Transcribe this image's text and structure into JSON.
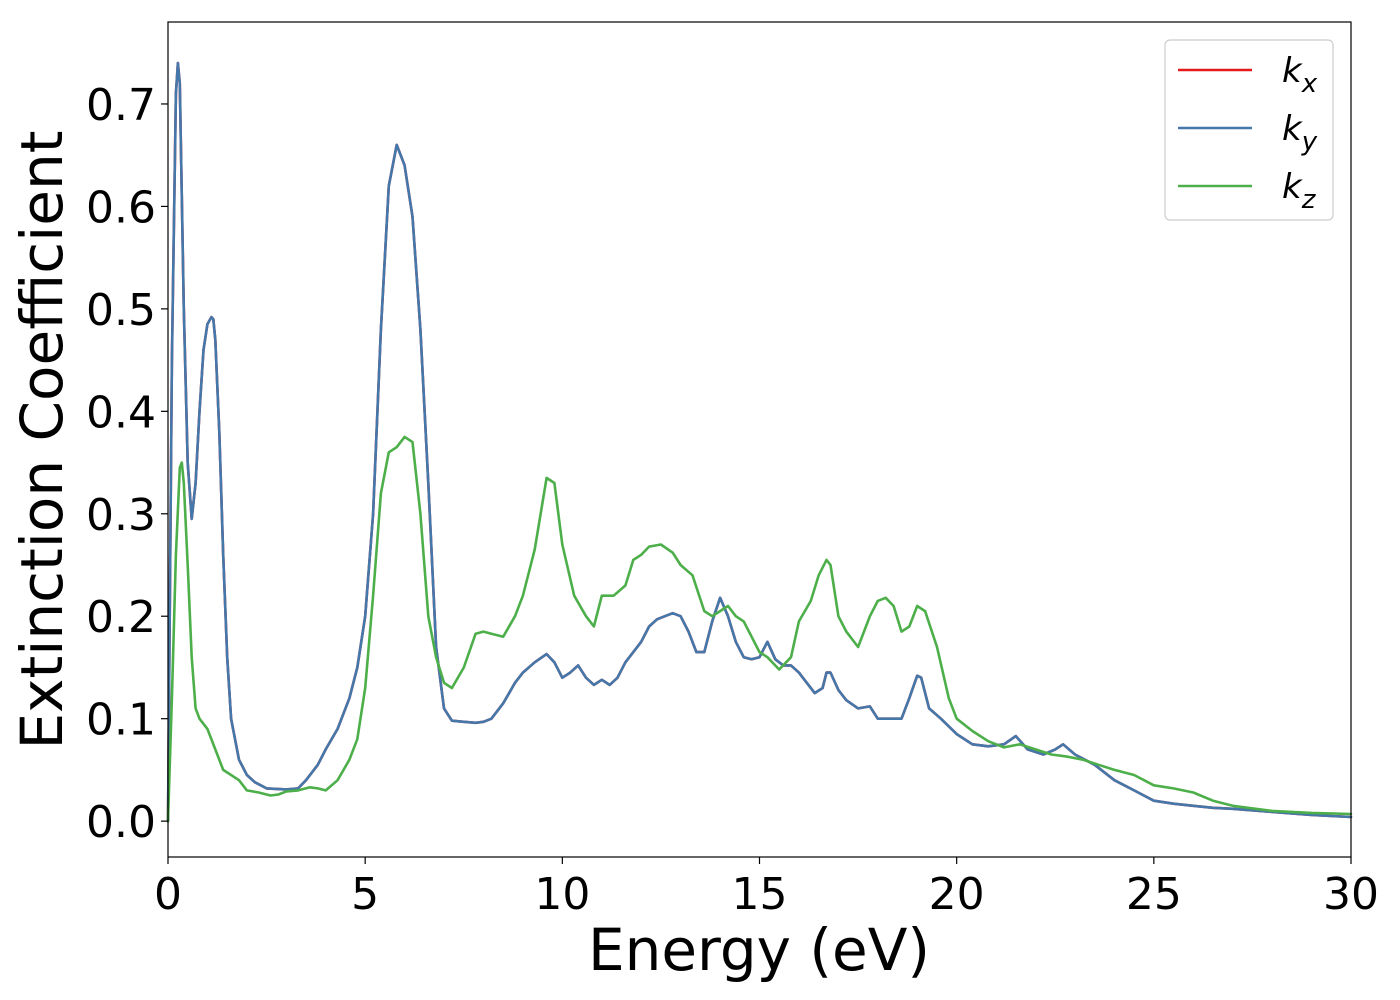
{
  "chart_data": {
    "type": "line",
    "title": "",
    "xlabel": "Energy (eV)",
    "ylabel": "Extinction Coefficient",
    "xlim": [
      0,
      30
    ],
    "ylim": [
      -0.035,
      0.78
    ],
    "xticks": [
      0,
      5,
      10,
      15,
      20,
      25,
      30
    ],
    "yticks": [
      0.0,
      0.1,
      0.2,
      0.3,
      0.4,
      0.5,
      0.6,
      0.7
    ],
    "grid": false,
    "legend_position": "top-right",
    "series": [
      {
        "name": "x",
        "color": "#e41a1c",
        "x": [
          0,
          0.1,
          0.2,
          0.25,
          0.3,
          0.4,
          0.5,
          0.6,
          0.7,
          0.8,
          0.9,
          1.0,
          1.1,
          1.15,
          1.2,
          1.3,
          1.4,
          1.5,
          1.6,
          1.8,
          2.0,
          2.2,
          2.5,
          3.0,
          3.3,
          3.5,
          3.8,
          4.0,
          4.3,
          4.6,
          4.8,
          5.0,
          5.2,
          5.4,
          5.6,
          5.8,
          6.0,
          6.2,
          6.4,
          6.6,
          6.8,
          7.0,
          7.2,
          7.5,
          7.8,
          8.0,
          8.2,
          8.5,
          8.8,
          9.0,
          9.3,
          9.6,
          9.8,
          10.0,
          10.2,
          10.4,
          10.6,
          10.8,
          11.0,
          11.2,
          11.4,
          11.6,
          11.8,
          12.0,
          12.2,
          12.4,
          12.6,
          12.8,
          13.0,
          13.2,
          13.4,
          13.6,
          13.8,
          14.0,
          14.2,
          14.4,
          14.6,
          14.8,
          15.0,
          15.2,
          15.4,
          15.6,
          15.8,
          16.0,
          16.2,
          16.4,
          16.6,
          16.7,
          16.8,
          17.0,
          17.2,
          17.5,
          17.8,
          18.0,
          18.2,
          18.4,
          18.6,
          18.8,
          19.0,
          19.1,
          19.3,
          19.6,
          20.0,
          20.4,
          20.8,
          21.2,
          21.5,
          21.8,
          22.2,
          22.5,
          22.7,
          23.0,
          23.5,
          24.0,
          24.5,
          25.0,
          25.5,
          26.0,
          26.5,
          27.0,
          28.0,
          29.0,
          30.0
        ],
        "y": [
          0.0,
          0.45,
          0.71,
          0.74,
          0.72,
          0.5,
          0.35,
          0.295,
          0.33,
          0.4,
          0.46,
          0.485,
          0.492,
          0.49,
          0.47,
          0.38,
          0.26,
          0.16,
          0.1,
          0.06,
          0.045,
          0.038,
          0.032,
          0.031,
          0.032,
          0.04,
          0.055,
          0.07,
          0.09,
          0.12,
          0.15,
          0.2,
          0.3,
          0.48,
          0.62,
          0.66,
          0.64,
          0.59,
          0.48,
          0.33,
          0.17,
          0.11,
          0.098,
          0.097,
          0.096,
          0.097,
          0.1,
          0.115,
          0.135,
          0.145,
          0.155,
          0.163,
          0.155,
          0.14,
          0.145,
          0.152,
          0.14,
          0.133,
          0.138,
          0.133,
          0.14,
          0.155,
          0.165,
          0.175,
          0.19,
          0.197,
          0.2,
          0.203,
          0.2,
          0.185,
          0.165,
          0.165,
          0.195,
          0.218,
          0.2,
          0.175,
          0.16,
          0.158,
          0.16,
          0.175,
          0.158,
          0.152,
          0.152,
          0.145,
          0.135,
          0.125,
          0.13,
          0.145,
          0.145,
          0.128,
          0.118,
          0.11,
          0.112,
          0.1,
          0.1,
          0.1,
          0.1,
          0.12,
          0.142,
          0.14,
          0.11,
          0.1,
          0.085,
          0.075,
          0.073,
          0.075,
          0.083,
          0.07,
          0.065,
          0.07,
          0.075,
          0.065,
          0.055,
          0.04,
          0.03,
          0.02,
          0.017,
          0.015,
          0.013,
          0.012,
          0.009,
          0.006,
          0.004
        ]
      },
      {
        "name": "y",
        "color": "#4477aa",
        "x": [
          0,
          0.1,
          0.2,
          0.25,
          0.3,
          0.4,
          0.5,
          0.6,
          0.7,
          0.8,
          0.9,
          1.0,
          1.1,
          1.15,
          1.2,
          1.3,
          1.4,
          1.5,
          1.6,
          1.8,
          2.0,
          2.2,
          2.5,
          3.0,
          3.3,
          3.5,
          3.8,
          4.0,
          4.3,
          4.6,
          4.8,
          5.0,
          5.2,
          5.4,
          5.6,
          5.8,
          6.0,
          6.2,
          6.4,
          6.6,
          6.8,
          7.0,
          7.2,
          7.5,
          7.8,
          8.0,
          8.2,
          8.5,
          8.8,
          9.0,
          9.3,
          9.6,
          9.8,
          10.0,
          10.2,
          10.4,
          10.6,
          10.8,
          11.0,
          11.2,
          11.4,
          11.6,
          11.8,
          12.0,
          12.2,
          12.4,
          12.6,
          12.8,
          13.0,
          13.2,
          13.4,
          13.6,
          13.8,
          14.0,
          14.2,
          14.4,
          14.6,
          14.8,
          15.0,
          15.2,
          15.4,
          15.6,
          15.8,
          16.0,
          16.2,
          16.4,
          16.6,
          16.7,
          16.8,
          17.0,
          17.2,
          17.5,
          17.8,
          18.0,
          18.2,
          18.4,
          18.6,
          18.8,
          19.0,
          19.1,
          19.3,
          19.6,
          20.0,
          20.4,
          20.8,
          21.2,
          21.5,
          21.8,
          22.2,
          22.5,
          22.7,
          23.0,
          23.5,
          24.0,
          24.5,
          25.0,
          25.5,
          26.0,
          26.5,
          27.0,
          28.0,
          29.0,
          30.0
        ],
        "y": [
          0.0,
          0.45,
          0.71,
          0.74,
          0.72,
          0.5,
          0.35,
          0.295,
          0.33,
          0.4,
          0.46,
          0.485,
          0.492,
          0.49,
          0.47,
          0.38,
          0.26,
          0.16,
          0.1,
          0.06,
          0.045,
          0.038,
          0.032,
          0.031,
          0.032,
          0.04,
          0.055,
          0.07,
          0.09,
          0.12,
          0.15,
          0.2,
          0.3,
          0.48,
          0.62,
          0.66,
          0.64,
          0.59,
          0.48,
          0.33,
          0.17,
          0.11,
          0.098,
          0.097,
          0.096,
          0.097,
          0.1,
          0.115,
          0.135,
          0.145,
          0.155,
          0.163,
          0.155,
          0.14,
          0.145,
          0.152,
          0.14,
          0.133,
          0.138,
          0.133,
          0.14,
          0.155,
          0.165,
          0.175,
          0.19,
          0.197,
          0.2,
          0.203,
          0.2,
          0.185,
          0.165,
          0.165,
          0.195,
          0.218,
          0.2,
          0.175,
          0.16,
          0.158,
          0.16,
          0.175,
          0.158,
          0.152,
          0.152,
          0.145,
          0.135,
          0.125,
          0.13,
          0.145,
          0.145,
          0.128,
          0.118,
          0.11,
          0.112,
          0.1,
          0.1,
          0.1,
          0.1,
          0.12,
          0.142,
          0.14,
          0.11,
          0.1,
          0.085,
          0.075,
          0.073,
          0.075,
          0.083,
          0.07,
          0.065,
          0.07,
          0.075,
          0.065,
          0.055,
          0.04,
          0.03,
          0.02,
          0.017,
          0.015,
          0.013,
          0.012,
          0.009,
          0.006,
          0.004
        ]
      },
      {
        "name": "z",
        "color": "#4daf4a",
        "x": [
          0,
          0.1,
          0.2,
          0.3,
          0.35,
          0.4,
          0.5,
          0.6,
          0.7,
          0.8,
          1.0,
          1.2,
          1.4,
          1.6,
          1.8,
          2.0,
          2.3,
          2.6,
          2.8,
          3.0,
          3.3,
          3.6,
          3.8,
          4.0,
          4.3,
          4.6,
          4.8,
          5.0,
          5.2,
          5.4,
          5.6,
          5.8,
          6.0,
          6.2,
          6.4,
          6.6,
          6.8,
          7.0,
          7.2,
          7.5,
          7.8,
          8.0,
          8.2,
          8.5,
          8.8,
          9.0,
          9.3,
          9.6,
          9.8,
          10.0,
          10.3,
          10.6,
          10.8,
          11.0,
          11.3,
          11.6,
          11.8,
          12.0,
          12.2,
          12.5,
          12.8,
          13.0,
          13.3,
          13.6,
          13.8,
          14.0,
          14.2,
          14.4,
          14.6,
          14.8,
          15.0,
          15.2,
          15.5,
          15.8,
          16.0,
          16.3,
          16.5,
          16.7,
          16.8,
          17.0,
          17.2,
          17.5,
          17.8,
          18.0,
          18.2,
          18.4,
          18.6,
          18.8,
          19.0,
          19.2,
          19.5,
          19.8,
          20.0,
          20.4,
          20.8,
          21.2,
          21.6,
          22.0,
          22.4,
          22.8,
          23.2,
          23.6,
          24.0,
          24.5,
          25.0,
          25.5,
          26.0,
          26.5,
          27.0,
          28.0,
          29.0,
          30.0
        ],
        "y": [
          0.0,
          0.12,
          0.26,
          0.345,
          0.35,
          0.33,
          0.25,
          0.16,
          0.11,
          0.1,
          0.09,
          0.07,
          0.05,
          0.045,
          0.04,
          0.03,
          0.028,
          0.025,
          0.026,
          0.029,
          0.03,
          0.033,
          0.032,
          0.03,
          0.04,
          0.06,
          0.08,
          0.13,
          0.22,
          0.32,
          0.36,
          0.365,
          0.375,
          0.37,
          0.3,
          0.2,
          0.16,
          0.135,
          0.13,
          0.15,
          0.183,
          0.185,
          0.183,
          0.18,
          0.2,
          0.22,
          0.265,
          0.335,
          0.33,
          0.27,
          0.22,
          0.2,
          0.19,
          0.22,
          0.22,
          0.23,
          0.255,
          0.26,
          0.268,
          0.27,
          0.262,
          0.25,
          0.24,
          0.205,
          0.2,
          0.205,
          0.21,
          0.2,
          0.195,
          0.18,
          0.165,
          0.16,
          0.148,
          0.16,
          0.195,
          0.215,
          0.24,
          0.255,
          0.25,
          0.2,
          0.185,
          0.17,
          0.2,
          0.215,
          0.218,
          0.21,
          0.185,
          0.19,
          0.21,
          0.205,
          0.17,
          0.12,
          0.1,
          0.088,
          0.078,
          0.072,
          0.075,
          0.07,
          0.065,
          0.063,
          0.06,
          0.055,
          0.05,
          0.045,
          0.035,
          0.032,
          0.028,
          0.02,
          0.015,
          0.01,
          0.008,
          0.007
        ]
      }
    ]
  }
}
